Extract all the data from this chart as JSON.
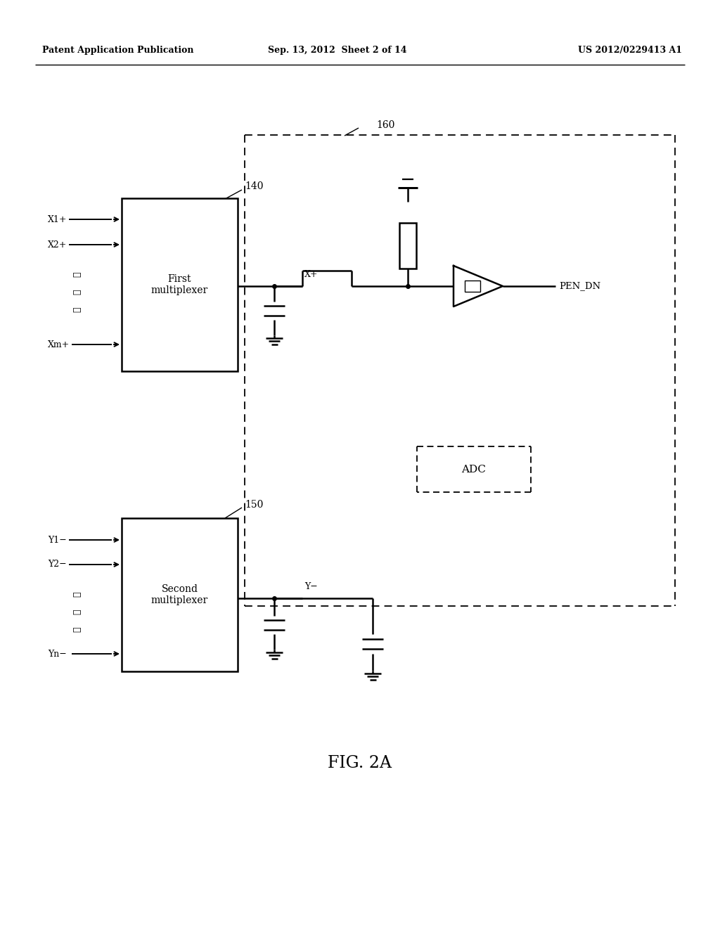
{
  "background_color": "#ffffff",
  "header_left": "Patent Application Publication",
  "header_center": "Sep. 13, 2012  Sheet 2 of 14",
  "header_right": "US 2012/0229413 A1",
  "figure_caption": "FIG. 2A",
  "label_140": "140",
  "label_150": "150",
  "label_160": "160",
  "label_first_mux": "First\nmultiplexer",
  "label_second_mux": "Second\nmultiplexer",
  "label_ADC": "ADC",
  "label_PEN_DN": "PEN_DN",
  "label_Xplus": "X+",
  "label_Yminus": "Y−"
}
